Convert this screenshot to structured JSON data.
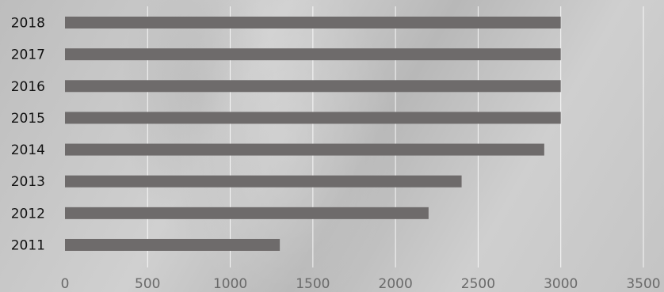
{
  "chart_data": {
    "type": "bar",
    "orientation": "horizontal",
    "categories": [
      "2018",
      "2017",
      "2016",
      "2015",
      "2014",
      "2013",
      "2012",
      "2011"
    ],
    "values": [
      3000,
      3000,
      3000,
      3000,
      2900,
      2400,
      2200,
      1300
    ],
    "xlim": [
      0,
      3500
    ],
    "xticks": [
      "0",
      "500",
      "1000",
      "1500",
      "2000",
      "2500",
      "3000",
      "3500"
    ],
    "grid": "vertical",
    "legend": "none",
    "colors": {
      "bar": "#6e6b6b",
      "grid": "#ffffff",
      "category_label": "#111111",
      "tick_label": "#6a6a6a"
    }
  }
}
